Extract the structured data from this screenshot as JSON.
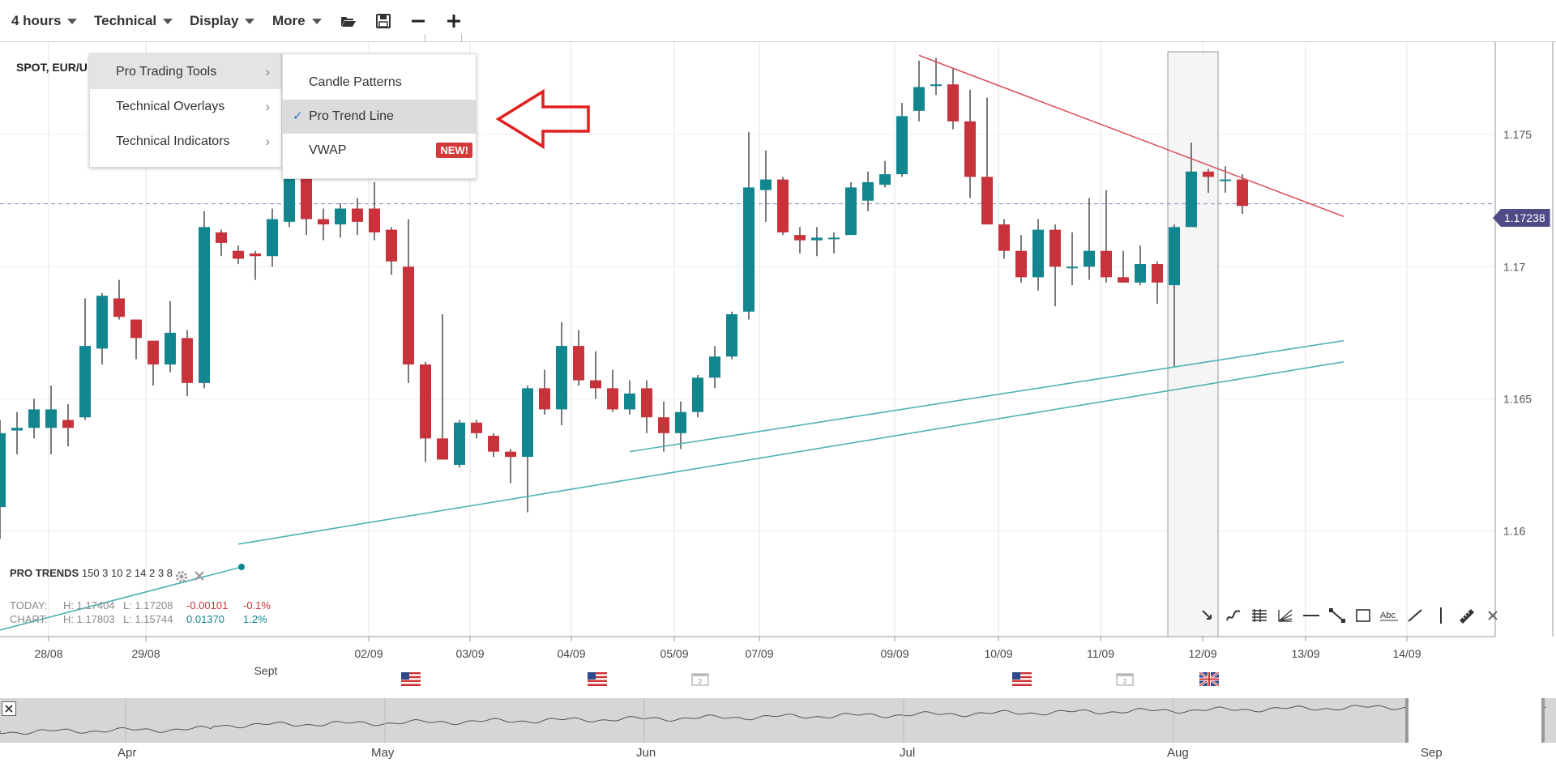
{
  "toolbar": {
    "interval": "4 hours",
    "technical": "Technical",
    "display": "Display",
    "more": "More",
    "icons": [
      "folder-open-icon",
      "save-icon",
      "zoom-out-icon",
      "zoom-in-icon"
    ]
  },
  "symbol": "SPOT, EUR/U",
  "menu": {
    "items": [
      {
        "label": "Pro Trading Tools",
        "active": true
      },
      {
        "label": "Technical Overlays",
        "active": false
      },
      {
        "label": "Technical Indicators",
        "active": false
      }
    ],
    "submenu": [
      {
        "label": "Candle Patterns",
        "checked": false
      },
      {
        "label": "Pro Trend Line",
        "checked": true
      },
      {
        "label": "VWAP",
        "badge": "NEW!",
        "checked": false
      }
    ],
    "check_glyph": "✓"
  },
  "pro_trends": {
    "title": "PRO TRENDS",
    "params": "150 3 10 2 14 2 3 8"
  },
  "stats": {
    "today": {
      "label": "TODAY:",
      "high": "H: 1.17404",
      "low": "L: 1.17208",
      "change": "-0.00101",
      "pct": "-0.1%"
    },
    "chart": {
      "label": "CHART:",
      "high": "H: 1.17803",
      "low": "L: 1.15744",
      "change": "0.01370",
      "pct": "1.2%"
    }
  },
  "current_price": "1.17238",
  "colors": {
    "up": "#12868f",
    "down": "#c8323a",
    "trend_up": "#4fb1b7",
    "trend_down": "#d9555b",
    "price_tag": "#4e4b87",
    "arrow": "#e02020"
  },
  "chart_data": {
    "type": "candlestick",
    "symbol": "SPOT, EUR/U",
    "interval": "4 hours",
    "y_ticks": [
      "1.175",
      "1.17",
      "1.165",
      "1.16"
    ],
    "x_ticks": [
      "28/08",
      "29/08",
      "02/09",
      "03/09",
      "04/09",
      "05/09",
      "07/09",
      "09/09",
      "10/09",
      "11/09",
      "12/09",
      "13/09",
      "14/09"
    ],
    "x_sub_label": "Sept",
    "ylim": [
      1.156,
      1.1785
    ],
    "current_price": 1.17238,
    "candles": [
      [
        1.1609,
        1.1637,
        1.1597,
        1.1642
      ],
      [
        1.1638,
        1.1639,
        1.1629,
        1.1645
      ],
      [
        1.1639,
        1.1646,
        1.1635,
        1.165
      ],
      [
        1.1639,
        1.1646,
        1.1629,
        1.1655
      ],
      [
        1.1642,
        1.1639,
        1.1632,
        1.1648
      ],
      [
        1.1643,
        1.167,
        1.1642,
        1.1688
      ],
      [
        1.1669,
        1.1689,
        1.1663,
        1.169
      ],
      [
        1.1688,
        1.1681,
        1.168,
        1.1695
      ],
      [
        1.168,
        1.1673,
        1.1665,
        1.168
      ],
      [
        1.1672,
        1.1663,
        1.1655,
        1.1672
      ],
      [
        1.1663,
        1.1675,
        1.166,
        1.1687
      ],
      [
        1.1673,
        1.1656,
        1.1651,
        1.1676
      ],
      [
        1.1656,
        1.1715,
        1.1654,
        1.1721
      ],
      [
        1.1713,
        1.1709,
        1.1704,
        1.1714
      ],
      [
        1.1706,
        1.1703,
        1.1701,
        1.1708
      ],
      [
        1.1705,
        1.1704,
        1.1695,
        1.1706
      ],
      [
        1.1704,
        1.1718,
        1.17,
        1.1722
      ],
      [
        1.1717,
        1.1752,
        1.1715,
        1.1755
      ],
      [
        1.1754,
        1.1718,
        1.1712,
        1.1756
      ],
      [
        1.1718,
        1.1716,
        1.171,
        1.1722
      ],
      [
        1.1716,
        1.1722,
        1.1711,
        1.1724
      ],
      [
        1.1722,
        1.1717,
        1.1712,
        1.1726
      ],
      [
        1.1722,
        1.1713,
        1.171,
        1.1732
      ],
      [
        1.1714,
        1.1702,
        1.1697,
        1.1715
      ],
      [
        1.17,
        1.1663,
        1.1656,
        1.1718
      ],
      [
        1.1663,
        1.1635,
        1.1626,
        1.1664
      ],
      [
        1.1635,
        1.1627,
        1.1627,
        1.1682
      ],
      [
        1.1625,
        1.1641,
        1.1624,
        1.1642
      ],
      [
        1.1641,
        1.1637,
        1.1635,
        1.1642
      ],
      [
        1.1636,
        1.163,
        1.1628,
        1.1637
      ],
      [
        1.163,
        1.1628,
        1.1618,
        1.1631
      ],
      [
        1.1628,
        1.1654,
        1.1607,
        1.1655
      ],
      [
        1.1654,
        1.1646,
        1.1644,
        1.1661
      ],
      [
        1.1646,
        1.167,
        1.164,
        1.1679
      ],
      [
        1.167,
        1.1657,
        1.1655,
        1.1676
      ],
      [
        1.1657,
        1.1654,
        1.165,
        1.1668
      ],
      [
        1.1654,
        1.1646,
        1.1645,
        1.1661
      ],
      [
        1.1646,
        1.1652,
        1.1644,
        1.1657
      ],
      [
        1.1654,
        1.1643,
        1.1637,
        1.1657
      ],
      [
        1.1643,
        1.1637,
        1.163,
        1.1649
      ],
      [
        1.1637,
        1.1645,
        1.1631,
        1.1649
      ],
      [
        1.1645,
        1.1658,
        1.1643,
        1.1659
      ],
      [
        1.1658,
        1.1666,
        1.1654,
        1.167
      ],
      [
        1.1666,
        1.1682,
        1.1665,
        1.1683
      ],
      [
        1.1683,
        1.173,
        1.168,
        1.1751
      ],
      [
        1.1729,
        1.1733,
        1.1717,
        1.1744
      ],
      [
        1.1733,
        1.1713,
        1.1712,
        1.1734
      ],
      [
        1.1712,
        1.171,
        1.1705,
        1.1715
      ],
      [
        1.171,
        1.1711,
        1.1704,
        1.1715
      ],
      [
        1.1711,
        1.1711,
        1.1705,
        1.1713
      ],
      [
        1.1712,
        1.173,
        1.1712,
        1.1732
      ],
      [
        1.1725,
        1.1732,
        1.1721,
        1.1736
      ],
      [
        1.1731,
        1.1735,
        1.173,
        1.174
      ],
      [
        1.1735,
        1.1757,
        1.1734,
        1.1762
      ],
      [
        1.1759,
        1.1768,
        1.1755,
        1.1778
      ],
      [
        1.1769,
        1.1769,
        1.1765,
        1.1779
      ],
      [
        1.1769,
        1.1755,
        1.1752,
        1.1775
      ],
      [
        1.1755,
        1.1734,
        1.1726,
        1.1767
      ],
      [
        1.1734,
        1.1716,
        1.1716,
        1.1764
      ],
      [
        1.1716,
        1.1706,
        1.1703,
        1.1718
      ],
      [
        1.1706,
        1.1696,
        1.1694,
        1.1712
      ],
      [
        1.1696,
        1.1714,
        1.1691,
        1.1718
      ],
      [
        1.1714,
        1.17,
        1.1685,
        1.1716
      ],
      [
        1.17,
        1.17,
        1.1693,
        1.1713
      ],
      [
        1.17,
        1.1706,
        1.1695,
        1.1726
      ],
      [
        1.1706,
        1.1696,
        1.1694,
        1.1729
      ],
      [
        1.1696,
        1.1694,
        1.1694,
        1.1706
      ],
      [
        1.1694,
        1.1701,
        1.1693,
        1.1708
      ],
      [
        1.1701,
        1.1694,
        1.1686,
        1.1702
      ],
      [
        1.1693,
        1.1715,
        1.1662,
        1.1716
      ],
      [
        1.1715,
        1.1736,
        1.1715,
        1.1747
      ],
      [
        1.1736,
        1.1734,
        1.1728,
        1.1737
      ],
      [
        1.1733,
        1.1733,
        1.1728,
        1.1738
      ],
      [
        1.1733,
        1.1723,
        1.172,
        1.1735
      ]
    ],
    "trend_lines": [
      {
        "kind": "support",
        "from_candle": 37,
        "from_price": 1.163,
        "to_candle": 78,
        "to_price": 1.1672
      },
      {
        "kind": "support",
        "from_candle": 14,
        "from_price": 1.1595,
        "to_candle": 78,
        "to_price": 1.1664
      },
      {
        "kind": "resistance",
        "from_candle": 54,
        "from_price": 1.178,
        "to_candle": 78,
        "to_price": 1.1719
      }
    ]
  },
  "navigator": {
    "months": [
      "Apr",
      "May",
      "Jun",
      "Jul",
      "Aug",
      "Sep"
    ]
  }
}
